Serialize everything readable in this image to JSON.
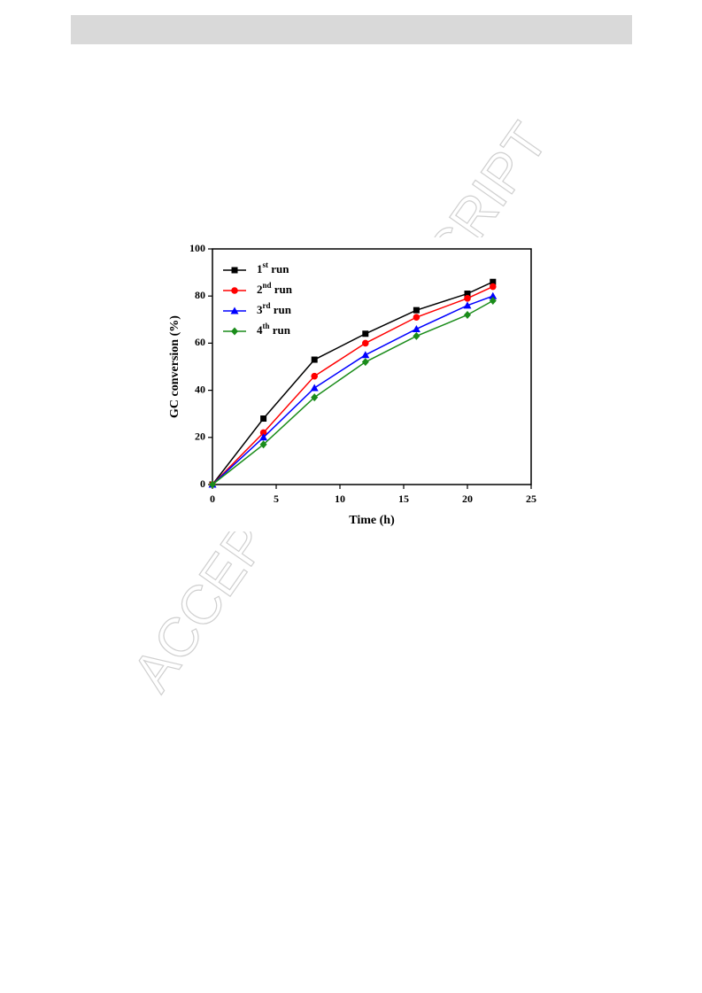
{
  "watermark": "ACCEPTED MANUSCRIPT",
  "chart_data": {
    "type": "line",
    "x_label": "Time (h)",
    "y_label": "GC conversion (%)",
    "x": [
      0,
      4,
      8,
      12,
      16,
      20,
      22
    ],
    "series": [
      {
        "name": "1st run",
        "color": "#000000",
        "marker": "square",
        "values": [
          0,
          28,
          53,
          64,
          74,
          81,
          86
        ]
      },
      {
        "name": "2nd run",
        "color": "#ff0000",
        "marker": "circle",
        "values": [
          0,
          22,
          46,
          60,
          71,
          79,
          84
        ]
      },
      {
        "name": "3rd run",
        "color": "#0000ff",
        "marker": "triangle",
        "values": [
          0,
          20,
          41,
          55,
          66,
          76,
          80
        ]
      },
      {
        "name": "4th run",
        "color": "#1a8c1a",
        "marker": "diamond",
        "values": [
          0,
          17,
          37,
          52,
          63,
          72,
          78
        ]
      }
    ],
    "xlim": [
      0,
      25
    ],
    "xticks": [
      0,
      5,
      10,
      15,
      20,
      25
    ],
    "ylim": [
      0,
      100
    ],
    "yticks": [
      0,
      20,
      40,
      60,
      80,
      100
    ],
    "legend": "upper left"
  }
}
